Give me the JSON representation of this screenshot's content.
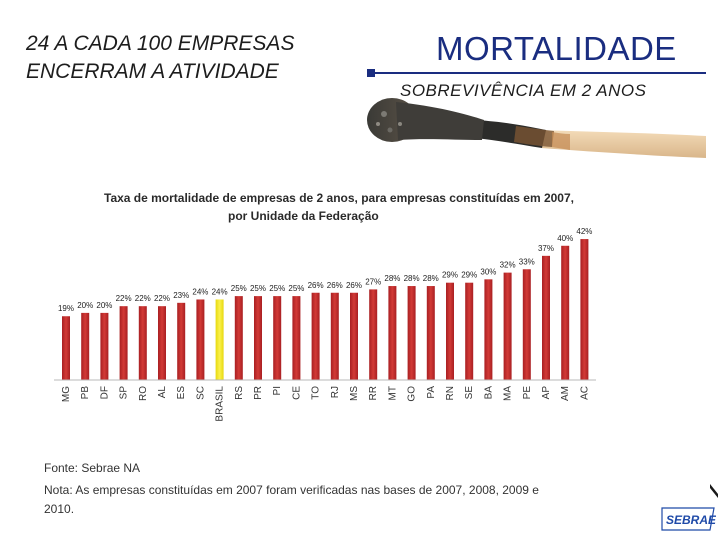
{
  "headline": {
    "line1": "24 A CADA 100 EMPRESAS",
    "line2": "ENCERRAM A ATIVIDADE"
  },
  "header": {
    "title": "MORTALIDADE",
    "subtitle": "SOBREVIVÊNCIA EM 2 ANOS",
    "accent_color": "#1a2d80"
  },
  "chart_data": {
    "type": "bar",
    "title_line1": "Taxa de mortalidade de empresas de 2 anos, para empresas constituídas em 2007,",
    "title_line2": "por Unidade da Federação",
    "categories": [
      "MG",
      "PB",
      "DF",
      "SP",
      "RO",
      "AL",
      "ES",
      "SC",
      "BRASIL",
      "RS",
      "PR",
      "PI",
      "CE",
      "TO",
      "RJ",
      "MS",
      "RR",
      "MT",
      "GO",
      "PA",
      "RN",
      "SE",
      "BA",
      "MA",
      "PE",
      "AP",
      "AM",
      "AC"
    ],
    "values": [
      19,
      20,
      20,
      22,
      22,
      22,
      23,
      24,
      24,
      25,
      25,
      25,
      25,
      26,
      26,
      26,
      27,
      28,
      28,
      28,
      29,
      29,
      30,
      32,
      33,
      37,
      40,
      42
    ],
    "labels": [
      "19%",
      "20%",
      "20%",
      "22%",
      "22%",
      "22%",
      "23%",
      "24%",
      "24%",
      "25%",
      "25%",
      "25%",
      "25%",
      "26%",
      "26%",
      "26%",
      "27%",
      "28%",
      "28%",
      "28%",
      "29%",
      "29%",
      "30%",
      "32%",
      "33%",
      "37%",
      "40%",
      "42%"
    ],
    "highlight_category": "BRASIL",
    "bar_color": "#c0282a",
    "highlight_color": "#f2e418",
    "ylim": [
      0,
      45
    ],
    "xlabel": "",
    "ylabel": ""
  },
  "footer": {
    "source": "Fonte: Sebrae NA",
    "note": "Nota: As empresas constituídas em 2007 foram verificadas nas bases de 2007, 2008, 2009 e 2010.",
    "logo_text": "SEBRAE"
  }
}
